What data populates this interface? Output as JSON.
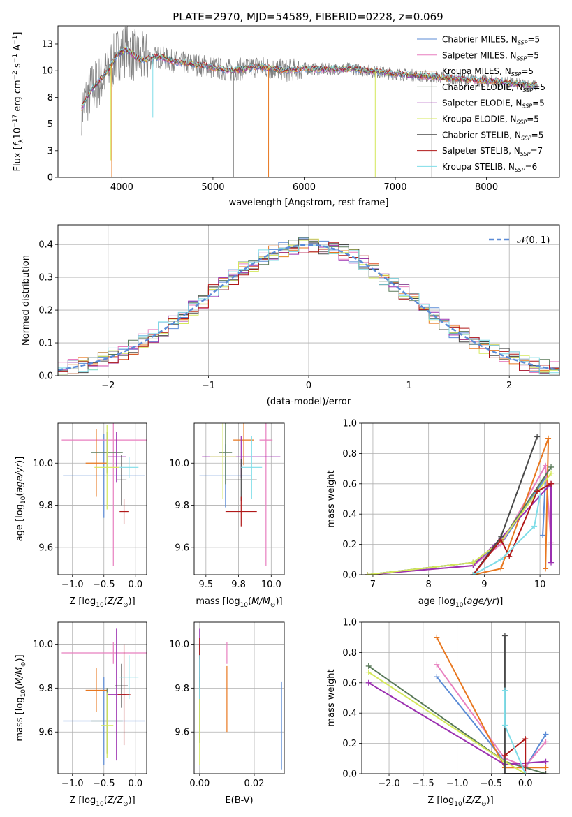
{
  "title": "PLATE=2970, MJD=54589, FIBERID=0228, z=0.069",
  "colors": {
    "Chabrier MILES": "#5b8bd6",
    "Salpeter MILES": "#e87fbf",
    "Kroupa MILES": "#e8771f",
    "Chabrier ELODIE": "#5a7a5a",
    "Salpeter ELODIE": "#9b30b0",
    "Kroupa ELODIE": "#d4e85a",
    "Chabrier STELIB": "#4a4a4a",
    "Salpeter STELIB": "#b01818",
    "Kroupa STELIB": "#7fdde8",
    "data": "#808080",
    "normal": "#5b8bd6"
  },
  "chart_data": [
    {
      "id": "spectrum",
      "type": "line",
      "title": "PLATE=2970, MJD=54589, FIBERID=0228, z=0.069",
      "xlabel": "wavelength [Angstrom, rest frame]",
      "ylabel": "Flux [f_λ 10^-17 erg cm^-2 s^-1 A^-1]",
      "xlim": [
        3300,
        8800
      ],
      "ylim": [
        0,
        14.2
      ],
      "xticks": [
        4000,
        5000,
        6000,
        7000,
        8000
      ],
      "yticks": [
        0.0,
        2.5,
        5.0,
        7.5,
        10.0,
        12.5
      ],
      "grid": false,
      "legend_position": "top-right",
      "legend": [
        {
          "name": "Chabrier MILES",
          "sub": "N",
          "ssp": "SSP",
          "n": "=5"
        },
        {
          "name": "Salpeter MILES",
          "sub": "N",
          "ssp": "SSP",
          "n": "=5"
        },
        {
          "name": "Kroupa MILES",
          "sub": "N",
          "ssp": "SSP",
          "n": "=5"
        },
        {
          "name": "Chabrier ELODIE",
          "sub": "N",
          "ssp": "SSP",
          "n": "=5"
        },
        {
          "name": "Salpeter ELODIE",
          "sub": "N",
          "ssp": "SSP",
          "n": "=5"
        },
        {
          "name": "Kroupa ELODIE",
          "sub": "N",
          "ssp": "SSP",
          "n": "=5"
        },
        {
          "name": "Chabrier STELIB",
          "sub": "N",
          "ssp": "SSP",
          "n": "=5"
        },
        {
          "name": "Salpeter STELIB",
          "sub": "N",
          "ssp": "SSP",
          "n": "=7"
        },
        {
          "name": "Kroupa STELIB",
          "sub": "N",
          "ssp": "SSP",
          "n": "=6"
        }
      ],
      "continuum": {
        "x": [
          3560,
          3650,
          3750,
          3850,
          3950,
          4050,
          4200,
          4400,
          4600,
          4800,
          5000,
          5200,
          5500,
          5800,
          6000,
          6200,
          6500,
          6800,
          7000,
          7300,
          7600,
          7900,
          8200,
          8500
        ],
        "y": [
          6.5,
          8.0,
          9.0,
          10.0,
          11.5,
          12.0,
          11.0,
          11.3,
          10.8,
          10.6,
          10.3,
          10.0,
          10.4,
          10.0,
          10.2,
          10.1,
          10.2,
          9.9,
          9.7,
          9.5,
          9.3,
          9.1,
          8.9,
          8.6
        ]
      },
      "spikes": [
        {
          "x": 3890,
          "y": 0.0,
          "series": "Kroupa MILES"
        },
        {
          "x": 3880,
          "y": 1.6,
          "series": "Kroupa ELODIE"
        },
        {
          "x": 4340,
          "y": 5.6,
          "series": "Kroupa STELIB"
        },
        {
          "x": 5225,
          "y": 0.0,
          "series": "data"
        },
        {
          "x": 5610,
          "y": 0.0,
          "series": "Kroupa MILES"
        },
        {
          "x": 6780,
          "y": 0.0,
          "series": "Kroupa ELODIE"
        },
        {
          "x": 7400,
          "y": 0.0,
          "series": "data"
        }
      ]
    },
    {
      "id": "residuals",
      "type": "histogram",
      "xlabel": "(data-model)/error",
      "ylabel": "Normed distribution",
      "xlim": [
        -2.5,
        2.5
      ],
      "ylim": [
        0,
        0.46
      ],
      "xticks": [
        -2,
        -1,
        0,
        1,
        2
      ],
      "yticks": [
        0.0,
        0.1,
        0.2,
        0.3,
        0.4
      ],
      "grid": true,
      "legend_position": "top-right",
      "normal_label": "𝒩(0, 1)",
      "bin_width": 0.1
    },
    {
      "id": "age-vs-Z",
      "type": "errorbar",
      "xlabel": "Z [log10(Z/Z☉)]",
      "ylabel": "age [log10(age/yr)]",
      "xlim": [
        -1.23,
        0.18
      ],
      "ylim": [
        9.47,
        10.19
      ],
      "xticks": [
        -1.0,
        -0.5,
        0.0
      ],
      "yticks": [
        9.6,
        9.8,
        10.0
      ],
      "grid": true,
      "points": [
        {
          "series": "Chabrier MILES",
          "x": -0.5,
          "xerr": 0.65,
          "y": 9.94,
          "yerr": 0.2
        },
        {
          "series": "Salpeter MILES",
          "x": -0.35,
          "xerr": 0.82,
          "y": 10.11,
          "yerr": 0.6
        },
        {
          "series": "Kroupa MILES",
          "x": -0.62,
          "xerr": 0.17,
          "y": 10.0,
          "yerr": 0.16
        },
        {
          "series": "Chabrier ELODIE",
          "x": -0.45,
          "xerr": 0.25,
          "y": 10.05,
          "yerr": 0.1
        },
        {
          "series": "Salpeter ELODIE",
          "x": -0.3,
          "xerr": 0.15,
          "y": 10.03,
          "yerr": 0.12
        },
        {
          "series": "Kroupa ELODIE",
          "x": -0.45,
          "xerr": 0.2,
          "y": 9.98,
          "yerr": 0.2
        },
        {
          "series": "Chabrier STELIB",
          "x": -0.22,
          "xerr": 0.08,
          "y": 9.92,
          "yerr": 0.12
        },
        {
          "series": "Salpeter STELIB",
          "x": -0.18,
          "xerr": 0.07,
          "y": 9.77,
          "yerr": 0.06
        },
        {
          "series": "Kroupa STELIB",
          "x": -0.1,
          "xerr": 0.15,
          "y": 9.98,
          "yerr": 0.05
        }
      ]
    },
    {
      "id": "age-vs-mass",
      "type": "errorbar",
      "xlabel": "mass [log10(M/M☉)]",
      "ylabel": "",
      "xlim": [
        9.41,
        10.1
      ],
      "ylim": [
        9.47,
        10.19
      ],
      "xticks": [
        9.5,
        9.75,
        10.0
      ],
      "yticks": [
        9.6,
        9.8,
        10.0
      ],
      "grid": true,
      "points": [
        {
          "series": "Chabrier MILES",
          "x": 9.65,
          "xerr": 0.2,
          "y": 9.94,
          "yerr": 0.15
        },
        {
          "series": "Salpeter MILES",
          "x": 9.96,
          "xerr": 0.05,
          "y": 10.11,
          "yerr": 0.6
        },
        {
          "series": "Kroupa MILES",
          "x": 9.79,
          "xerr": 0.08,
          "y": 10.11,
          "yerr": 0.12
        },
        {
          "series": "Chabrier ELODIE",
          "x": 9.65,
          "xerr": 0.05,
          "y": 10.05,
          "yerr": 0.15
        },
        {
          "series": "Salpeter ELODIE",
          "x": 9.77,
          "xerr": 0.3,
          "y": 10.03,
          "yerr": 0.1
        },
        {
          "series": "Kroupa ELODIE",
          "x": 9.63,
          "xerr": 0.1,
          "y": 10.03,
          "yerr": 0.2
        },
        {
          "series": "Chabrier STELIB",
          "x": 9.77,
          "xerr": 0.12,
          "y": 9.92,
          "yerr": 0.1
        },
        {
          "series": "Salpeter STELIB",
          "x": 9.77,
          "xerr": 0.12,
          "y": 9.77,
          "yerr": 0.07
        },
        {
          "series": "Kroupa STELIB",
          "x": 9.85,
          "xerr": 0.08,
          "y": 9.98,
          "yerr": 0.15
        }
      ]
    },
    {
      "id": "massweight-vs-age",
      "type": "line",
      "xlabel": "age [log10(age/yr)]",
      "ylabel": "mass weight",
      "xlim": [
        6.8,
        10.35
      ],
      "ylim": [
        0,
        1
      ],
      "xticks": [
        7,
        8,
        9,
        10
      ],
      "yticks": [
        0.0,
        0.2,
        0.4,
        0.6,
        0.8,
        1.0
      ],
      "grid": true,
      "series": [
        {
          "name": "Chabrier MILES",
          "x": [
            6.9,
            8.8,
            9.3,
            10.1,
            10.05
          ],
          "y": [
            0.0,
            0.08,
            0.2,
            0.64,
            0.26
          ]
        },
        {
          "name": "Salpeter MILES",
          "x": [
            6.9,
            8.8,
            9.3,
            10.1,
            10.2
          ],
          "y": [
            0.0,
            0.06,
            0.2,
            0.72,
            0.21
          ]
        },
        {
          "name": "Kroupa MILES",
          "x": [
            8.8,
            9.3,
            10.15,
            10.1
          ],
          "y": [
            0.0,
            0.04,
            0.9,
            0.04
          ]
        },
        {
          "name": "Chabrier ELODIE",
          "x": [
            6.9,
            8.8,
            9.3,
            10.2
          ],
          "y": [
            0.0,
            0.08,
            0.22,
            0.71
          ]
        },
        {
          "name": "Salpeter ELODIE",
          "x": [
            6.9,
            8.8,
            9.3,
            10.2,
            10.2
          ],
          "y": [
            0.0,
            0.06,
            0.24,
            0.6,
            0.08
          ]
        },
        {
          "name": "Kroupa ELODIE",
          "x": [
            6.9,
            8.8,
            9.3,
            10.2
          ],
          "y": [
            0.0,
            0.08,
            0.22,
            0.67
          ]
        },
        {
          "name": "Chabrier STELIB",
          "x": [
            8.8,
            9.3,
            9.95
          ],
          "y": [
            0.0,
            0.25,
            0.91
          ]
        },
        {
          "name": "Salpeter STELIB",
          "x": [
            8.8,
            9.3,
            9.45,
            9.95,
            10.2
          ],
          "y": [
            0.0,
            0.23,
            0.12,
            0.55,
            0.6
          ]
        },
        {
          "name": "Kroupa STELIB",
          "x": [
            8.8,
            9.3,
            9.9,
            10.0
          ],
          "y": [
            0.0,
            0.1,
            0.32,
            0.52
          ]
        }
      ]
    },
    {
      "id": "mass-vs-Z",
      "type": "errorbar",
      "xlabel": "Z [log10(Z/Z☉)]",
      "ylabel": "mass [log10(M/M☉)]",
      "xlim": [
        -1.23,
        0.18
      ],
      "ylim": [
        9.41,
        10.1
      ],
      "xticks": [
        -1.0,
        -0.5,
        0.0
      ],
      "yticks": [
        9.6,
        9.8,
        10.0
      ],
      "grid": true,
      "points": [
        {
          "series": "Chabrier MILES",
          "x": -0.5,
          "xerr": 0.65,
          "y": 9.65,
          "yerr": 0.2
        },
        {
          "series": "Salpeter MILES",
          "x": -0.35,
          "xerr": 0.82,
          "y": 9.96,
          "yerr": 0.05
        },
        {
          "series": "Kroupa MILES",
          "x": -0.62,
          "xerr": 0.17,
          "y": 9.79,
          "yerr": 0.1
        },
        {
          "series": "Chabrier ELODIE",
          "x": -0.45,
          "xerr": 0.25,
          "y": 9.65,
          "yerr": 0.15
        },
        {
          "series": "Salpeter ELODIE",
          "x": -0.3,
          "xerr": 0.15,
          "y": 9.77,
          "yerr": 0.3
        },
        {
          "series": "Kroupa ELODIE",
          "x": -0.45,
          "xerr": 0.1,
          "y": 9.63,
          "yerr": 0.15
        },
        {
          "series": "Chabrier STELIB",
          "x": -0.22,
          "xerr": 0.1,
          "y": 9.81,
          "yerr": 0.1
        },
        {
          "series": "Salpeter STELIB",
          "x": -0.18,
          "xerr": 0.1,
          "y": 9.77,
          "yerr": 0.23
        },
        {
          "series": "Kroupa STELIB",
          "x": -0.1,
          "xerr": 0.15,
          "y": 9.85,
          "yerr": 0.1
        }
      ]
    },
    {
      "id": "mass-vs-EBV",
      "type": "errorbar",
      "xlabel": "E(B-V)",
      "ylabel": "",
      "xlim": [
        -0.002,
        0.031
      ],
      "ylim": [
        9.41,
        10.1
      ],
      "xticks": [
        0.0,
        0.02
      ],
      "yticks": [
        9.6,
        9.8,
        10.0
      ],
      "grid": true,
      "points": [
        {
          "series": "Chabrier MILES",
          "x": 0.03,
          "y": 9.63,
          "yerr": 0.2
        },
        {
          "series": "Salpeter MILES",
          "x": 0.01,
          "y": 9.96,
          "yerr": 0.05
        },
        {
          "series": "Kroupa MILES",
          "x": 0.01,
          "y": 9.75,
          "yerr": 0.15
        },
        {
          "series": "Chabrier ELODIE",
          "x": 0.0,
          "y": 9.7,
          "yerr": 0.15
        },
        {
          "series": "Salpeter ELODIE",
          "x": 0.0,
          "y": 9.95,
          "yerr": 0.12
        },
        {
          "series": "Kroupa ELODIE",
          "x": 0.0,
          "y": 9.6,
          "yerr": 0.15
        },
        {
          "series": "Chabrier STELIB",
          "x": 0.0,
          "y": 9.9,
          "yerr": 0.1
        },
        {
          "series": "Salpeter STELIB",
          "x": 0.0,
          "y": 9.98,
          "yerr": 0.05
        },
        {
          "series": "Kroupa STELIB",
          "x": 0.0,
          "y": 9.85,
          "yerr": 0.1
        }
      ]
    },
    {
      "id": "massweight-vs-Z",
      "type": "line",
      "xlabel": "Z [log10(Z/Z☉)]",
      "ylabel": "mass weight",
      "xlim": [
        -2.4,
        0.5
      ],
      "ylim": [
        0,
        1
      ],
      "xticks": [
        -2.0,
        -1.5,
        -1.0,
        -0.5,
        0.0
      ],
      "yticks": [
        0.0,
        0.2,
        0.4,
        0.6,
        0.8,
        1.0
      ],
      "grid": true,
      "series": [
        {
          "name": "Chabrier MILES",
          "x": [
            -1.3,
            -0.3,
            0.0,
            0.3
          ],
          "y": [
            0.64,
            0.08,
            0.04,
            0.26
          ]
        },
        {
          "name": "Salpeter MILES",
          "x": [
            -1.3,
            -0.3,
            0.0,
            0.3
          ],
          "y": [
            0.72,
            0.1,
            0.05,
            0.21
          ]
        },
        {
          "name": "Kroupa MILES",
          "x": [
            -1.3,
            -0.3,
            0.3
          ],
          "y": [
            0.9,
            0.04,
            0.04
          ]
        },
        {
          "name": "Chabrier ELODIE",
          "x": [
            -2.3,
            -0.3,
            0.0,
            0.3
          ],
          "y": [
            0.71,
            0.08,
            0.04,
            0.0
          ]
        },
        {
          "name": "Salpeter ELODIE",
          "x": [
            -2.3,
            -0.3,
            0.3
          ],
          "y": [
            0.6,
            0.06,
            0.08
          ]
        },
        {
          "name": "Kroupa ELODIE",
          "x": [
            -2.3,
            -0.3,
            0.0
          ],
          "y": [
            0.67,
            0.08,
            0.0
          ]
        },
        {
          "name": "Chabrier STELIB",
          "x": [
            -0.3,
            -0.3,
            0.3
          ],
          "y": [
            0.91,
            0.0,
            0.0
          ]
        },
        {
          "name": "Salpeter STELIB",
          "x": [
            -0.3,
            0.0,
            0.0
          ],
          "y": [
            0.12,
            0.23,
            0.0
          ]
        },
        {
          "name": "Kroupa STELIB",
          "x": [
            -0.3,
            -0.3,
            0.0
          ],
          "y": [
            0.55,
            0.32,
            0.0
          ]
        }
      ]
    }
  ]
}
